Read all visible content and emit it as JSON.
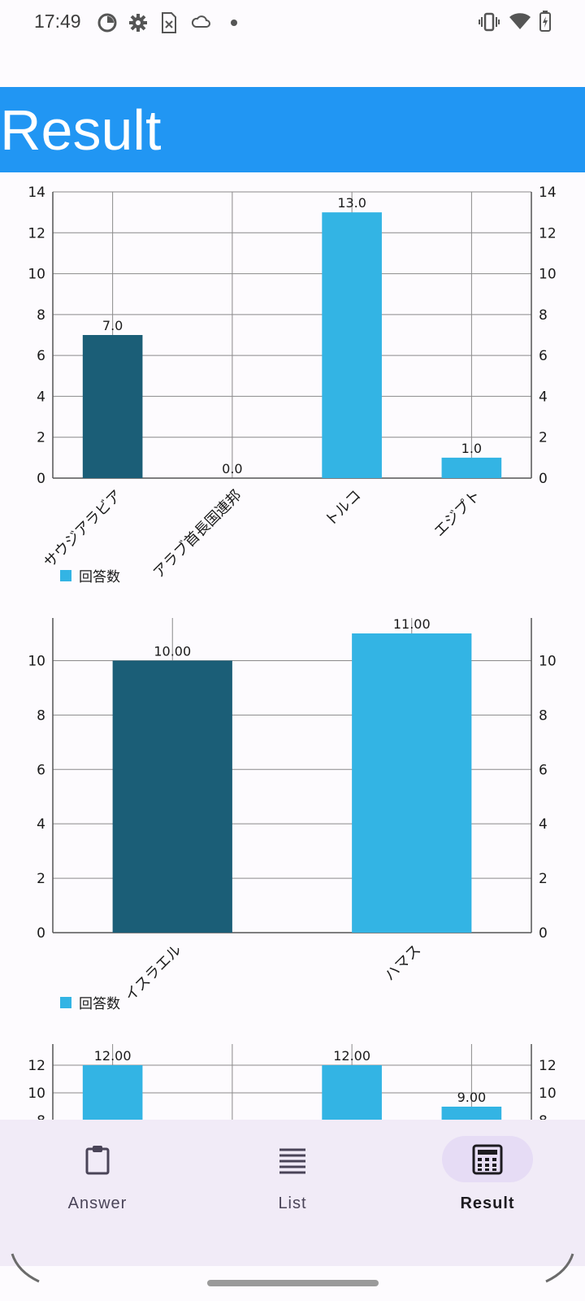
{
  "status_bar": {
    "time": "17:49",
    "left_icons": [
      "pie-status-icon",
      "settings-gear-icon",
      "sim-file-icon",
      "cloud-icon",
      "dot-icon"
    ],
    "right_icons": [
      "vibrate-icon",
      "wifi-icon",
      "battery-charging-icon"
    ]
  },
  "app_bar": {
    "title": "Result"
  },
  "colors": {
    "primary": "#2196f3",
    "bar_dark": "#1b5e77",
    "bar_light": "#33b4e4",
    "nav_bg": "#f1ebf7",
    "nav_active": "#e6dcf5"
  },
  "chart_data": [
    {
      "type": "bar",
      "categories": [
        "サウジアラビア",
        "アラブ首長国連邦",
        "トルコ",
        "エジプト"
      ],
      "values": [
        7.0,
        0.0,
        13.0,
        1.0
      ],
      "value_labels": [
        "7.0",
        "0.0",
        "13.0",
        "1.0"
      ],
      "highlight_index": 0,
      "ylim": [
        0,
        14
      ],
      "yticks": [
        "0",
        "2",
        "4",
        "6",
        "8",
        "10",
        "12",
        "14"
      ],
      "legend": "回答数",
      "grid": true,
      "dual_axis": true
    },
    {
      "type": "bar",
      "categories": [
        "イスラエル",
        "ハマス"
      ],
      "values": [
        10.0,
        11.0
      ],
      "value_labels": [
        "10.00",
        "11.00"
      ],
      "highlight_index": 0,
      "ylim": [
        0,
        11
      ],
      "yticks": [
        "0",
        "2",
        "4",
        "6",
        "8",
        "10"
      ],
      "legend": "回答数",
      "grid": true,
      "dual_axis": true
    },
    {
      "type": "bar",
      "categories": [
        "",
        "",
        "",
        ""
      ],
      "values": [
        12.0,
        null,
        12.0,
        9.0
      ],
      "value_labels": [
        "12.00",
        "",
        "12.00",
        "9.00"
      ],
      "highlight_index": -1,
      "ylim": [
        0,
        12
      ],
      "yticks": [
        "8",
        "10",
        "12"
      ],
      "grid": true,
      "dual_axis": true,
      "partially_visible": true
    }
  ],
  "bottom_nav": {
    "items": [
      {
        "label": "Answer",
        "icon": "clipboard-icon",
        "active": false
      },
      {
        "label": "List",
        "icon": "list-lines-icon",
        "active": false
      },
      {
        "label": "Result",
        "icon": "calculator-icon",
        "active": true
      }
    ]
  }
}
